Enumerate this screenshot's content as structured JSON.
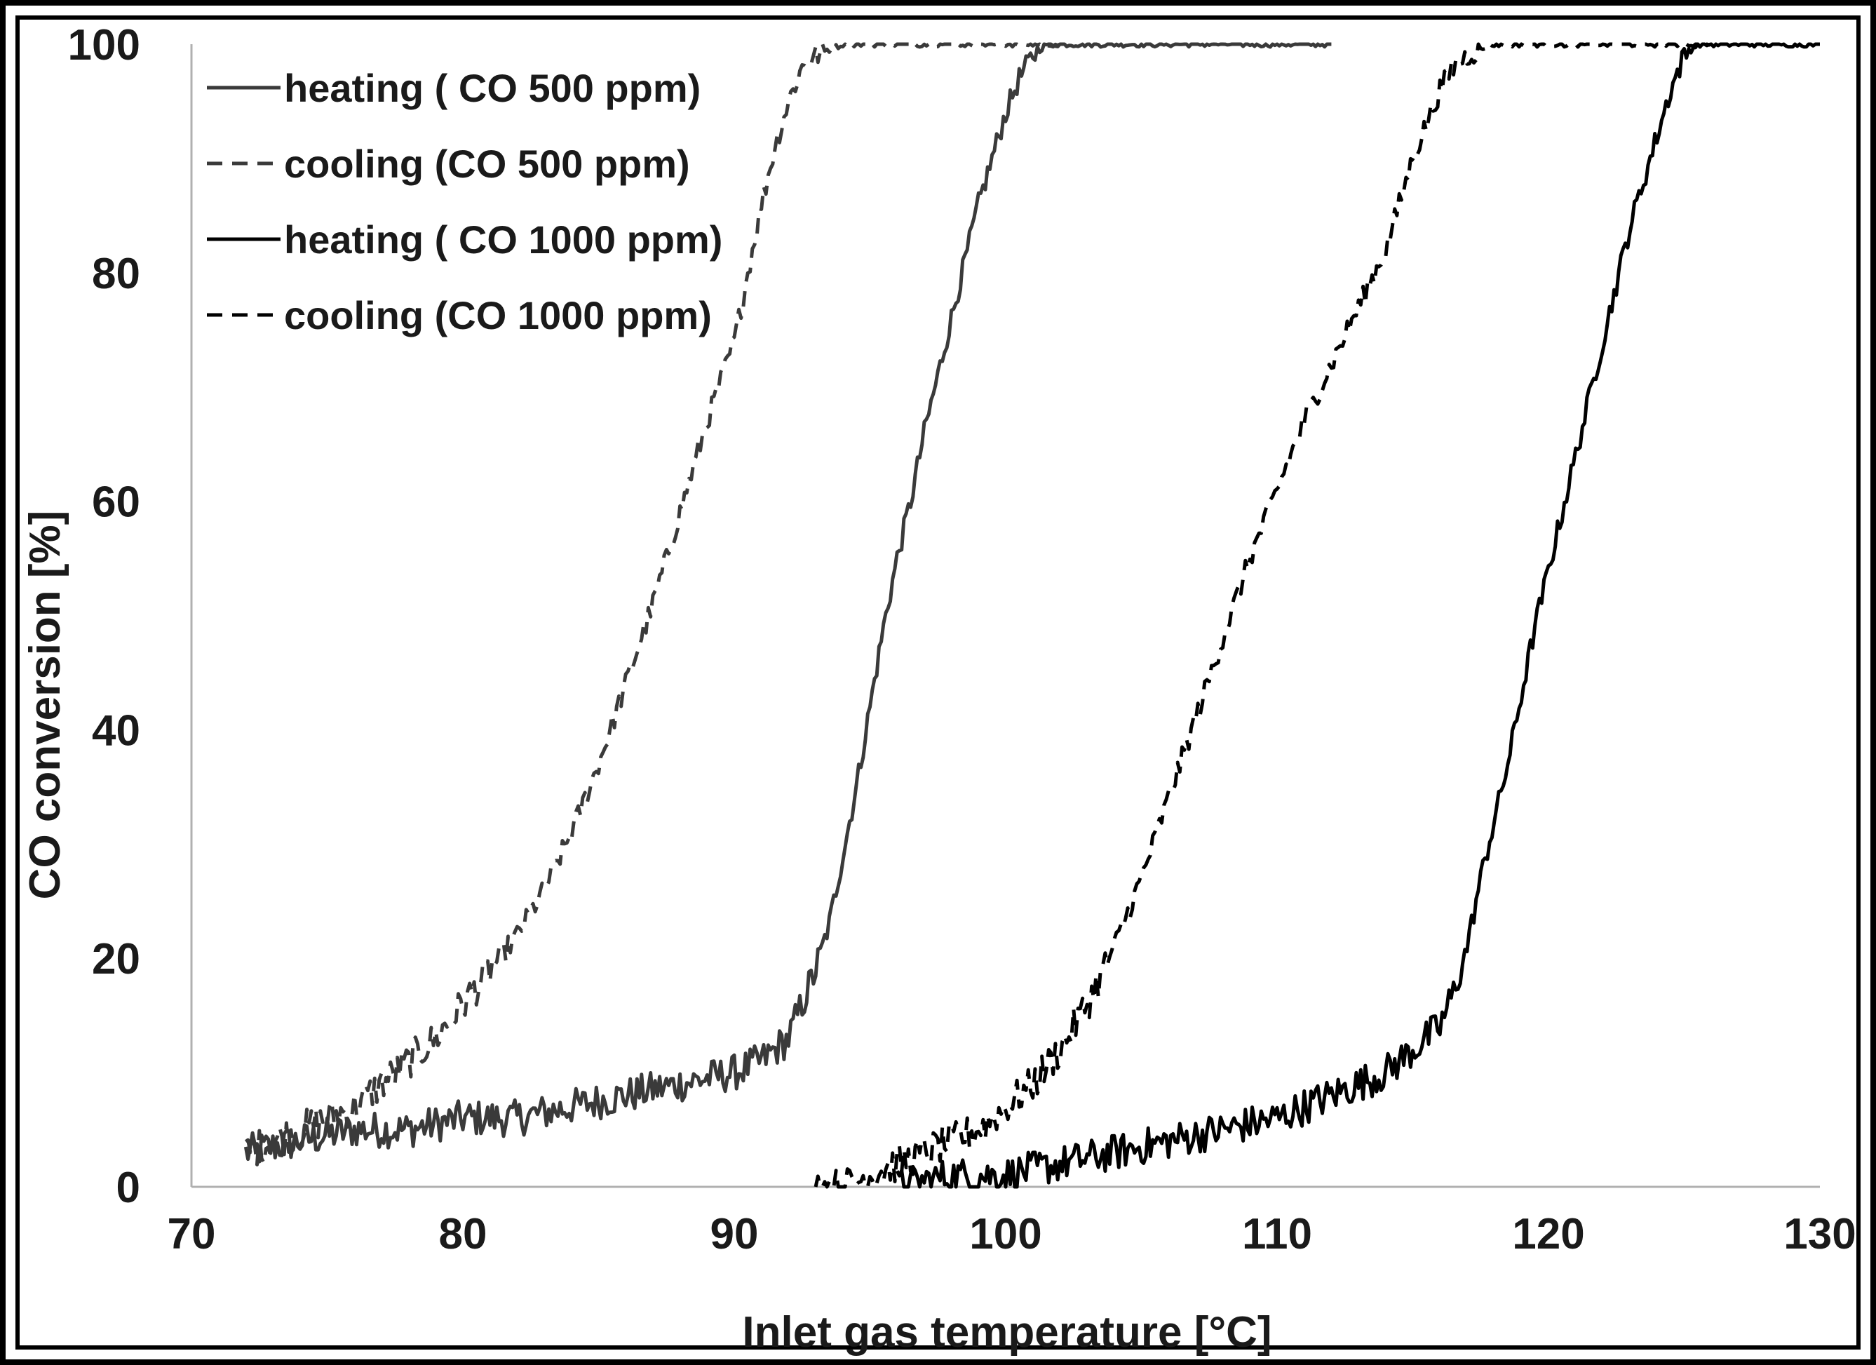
{
  "chart_data": {
    "type": "line",
    "title": "",
    "xlabel": "Inlet gas temperature [°C]",
    "ylabel": "CO conversion [%]",
    "xlim": [
      70,
      130
    ],
    "ylim": [
      0,
      100
    ],
    "x_ticks": [
      70,
      80,
      90,
      100,
      110,
      120,
      130
    ],
    "y_ticks": [
      0,
      20,
      40,
      60,
      80,
      100
    ],
    "x_tick_labels": [
      "70",
      "80",
      "90",
      "100",
      "110",
      "120",
      "130"
    ],
    "y_tick_labels": [
      "0",
      "20",
      "40",
      "60",
      "80",
      "100"
    ],
    "grid": false,
    "legend_position": "top-left",
    "series": [
      {
        "name": "heating ( CO 500 ppm)",
        "style": "solid",
        "color": "#3a3a3a",
        "x": [
          72,
          74,
          76,
          78,
          80,
          82,
          84,
          86,
          88,
          90,
          91,
          92,
          92.5,
          93,
          93.5,
          94,
          94.5,
          95,
          95.5,
          96,
          96.5,
          97,
          97.5,
          98,
          98.5,
          99,
          99.5,
          100,
          100.5,
          101,
          101.5,
          102,
          104,
          106,
          108,
          110,
          112
        ],
        "y": [
          3,
          4,
          5,
          5,
          6,
          6,
          7,
          8,
          9,
          10,
          11,
          13,
          16,
          19,
          23,
          29,
          35,
          42,
          49,
          55,
          60,
          66,
          71,
          76,
          81,
          86,
          90,
          94,
          97,
          99,
          100,
          100,
          100,
          100,
          100,
          100,
          100
        ]
      },
      {
        "name": "cooling (CO 500 ppm)",
        "style": "dashed",
        "color": "#3a3a3a",
        "x": [
          72,
          73,
          74,
          75,
          76,
          77,
          78,
          79,
          80,
          81,
          82,
          83,
          84,
          85,
          86,
          87,
          88,
          89,
          90,
          90.5,
          91,
          91.5,
          92,
          92.5,
          93,
          94,
          96,
          98,
          100,
          102
        ],
        "y": [
          3,
          4,
          5,
          6,
          7,
          9,
          11,
          13,
          16,
          19,
          22,
          26,
          31,
          37,
          44,
          51,
          59,
          67,
          74,
          80,
          86,
          91,
          95,
          98,
          99,
          100,
          100,
          100,
          100,
          100
        ]
      },
      {
        "name": "heating ( CO 1000 ppm)",
        "style": "solid",
        "color": "#000000",
        "x": [
          96,
          98,
          100,
          102,
          104,
          106,
          108,
          110,
          112,
          113,
          114,
          115,
          116,
          116.5,
          117,
          117.5,
          118,
          118.5,
          119,
          119.5,
          120,
          120.5,
          121,
          121.5,
          122,
          122.5,
          123,
          123.5,
          124,
          124.5,
          125,
          125.5,
          126,
          128,
          130
        ],
        "y": [
          0,
          1,
          1,
          2,
          3,
          4,
          5,
          6,
          8,
          9,
          10,
          12,
          14,
          17,
          21,
          27,
          32,
          37,
          43,
          49,
          54,
          59,
          64,
          69,
          74,
          79,
          84,
          88,
          92,
          96,
          99,
          100,
          100,
          100,
          100
        ]
      },
      {
        "name": "cooling (CO 1000 ppm)",
        "style": "dashed",
        "color": "#000000",
        "x": [
          93,
          94,
          95,
          96,
          97,
          98,
          99,
          100,
          101,
          102,
          103,
          104,
          105,
          106,
          107,
          108,
          109,
          110,
          111,
          112,
          113,
          114,
          114.5,
          115,
          115.5,
          116,
          116.5,
          117,
          118,
          120,
          122,
          124,
          126
        ],
        "y": [
          0,
          0,
          1,
          2,
          3,
          4,
          5,
          7,
          9,
          12,
          16,
          21,
          27,
          34,
          41,
          48,
          55,
          61,
          67,
          72,
          77,
          82,
          86,
          90,
          93,
          96,
          98,
          99,
          100,
          100,
          100,
          100,
          100
        ]
      }
    ]
  }
}
